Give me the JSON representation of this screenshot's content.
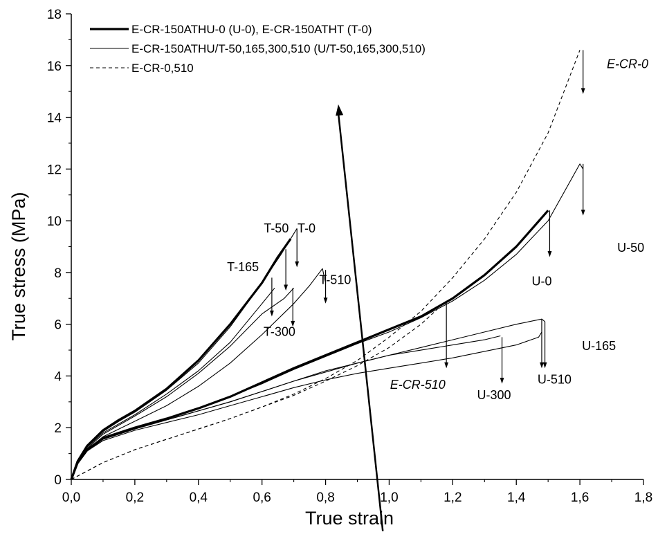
{
  "chart_data": {
    "type": "line",
    "xlabel": "True strain",
    "ylabel": "True stress (MPa)",
    "xlim": [
      0,
      1.8
    ],
    "ylim": [
      0,
      18
    ],
    "xticks": [
      "0,0",
      "0,2",
      "0,4",
      "0,6",
      "0,8",
      "1,0",
      "1,2",
      "1,4",
      "1,6",
      "1,8"
    ],
    "yticks": [
      "0",
      "2",
      "4",
      "6",
      "8",
      "10",
      "12",
      "14",
      "16",
      "18"
    ],
    "grid": false,
    "legend_position": "top-left",
    "legend": [
      {
        "label": "E-CR-150ATHU-0 (U-0), E-CR-150ATHT (T-0)",
        "style": "thick"
      },
      {
        "label": "E-CR-150ATHU/T-50,165,300,510 (U/T-50,165,300,510)",
        "style": "thin"
      },
      {
        "label": "E-CR-0,510",
        "style": "dashed"
      }
    ],
    "series": [
      {
        "label": "T-0",
        "style": "thick",
        "x": [
          0,
          0.02,
          0.05,
          0.1,
          0.15,
          0.2,
          0.3,
          0.4,
          0.5,
          0.6,
          0.65,
          0.69
        ],
        "y": [
          0,
          0.7,
          1.3,
          1.9,
          2.3,
          2.65,
          3.5,
          4.6,
          6.0,
          7.6,
          8.6,
          9.3
        ]
      },
      {
        "label": "T-50",
        "style": "thin",
        "x": [
          0,
          0.02,
          0.05,
          0.1,
          0.15,
          0.2,
          0.3,
          0.4,
          0.5,
          0.6,
          0.66,
          0.71
        ],
        "y": [
          0,
          0.7,
          1.3,
          1.85,
          2.25,
          2.6,
          3.45,
          4.5,
          5.9,
          7.6,
          8.7,
          9.7
        ]
      },
      {
        "label": "T-165",
        "style": "thin",
        "x": [
          0,
          0.02,
          0.05,
          0.1,
          0.15,
          0.2,
          0.3,
          0.4,
          0.5,
          0.6,
          0.64
        ],
        "y": [
          0,
          0.7,
          1.25,
          1.8,
          2.15,
          2.5,
          3.3,
          4.2,
          5.3,
          6.8,
          7.4
        ]
      },
      {
        "label": "T-300",
        "style": "thin",
        "x": [
          0,
          0.02,
          0.05,
          0.1,
          0.15,
          0.2,
          0.3,
          0.4,
          0.5,
          0.6,
          0.67,
          0.7
        ],
        "y": [
          0,
          0.7,
          1.2,
          1.75,
          2.1,
          2.45,
          3.2,
          4.1,
          5.15,
          6.4,
          7.0,
          7.4
        ]
      },
      {
        "label": "T-510",
        "style": "thin",
        "x": [
          0,
          0.02,
          0.05,
          0.1,
          0.15,
          0.2,
          0.3,
          0.4,
          0.5,
          0.6,
          0.7,
          0.75,
          0.79,
          0.8
        ],
        "y": [
          0,
          0.65,
          1.15,
          1.65,
          1.95,
          2.25,
          2.85,
          3.6,
          4.5,
          5.6,
          6.8,
          7.5,
          8.15,
          7.6
        ]
      },
      {
        "label": "U-0",
        "style": "thick",
        "x": [
          0,
          0.02,
          0.05,
          0.1,
          0.2,
          0.3,
          0.4,
          0.5,
          0.6,
          0.7,
          0.8,
          0.9,
          1.0,
          1.1,
          1.2,
          1.3,
          1.4,
          1.5
        ],
        "y": [
          0,
          0.65,
          1.15,
          1.6,
          2.0,
          2.35,
          2.75,
          3.2,
          3.75,
          4.3,
          4.8,
          5.3,
          5.8,
          6.3,
          7.0,
          7.9,
          9.0,
          10.4
        ]
      },
      {
        "label": "U-50",
        "style": "thin",
        "x": [
          0,
          0.02,
          0.05,
          0.1,
          0.2,
          0.3,
          0.4,
          0.5,
          0.6,
          0.7,
          0.8,
          0.9,
          1.0,
          1.1,
          1.2,
          1.3,
          1.4,
          1.5,
          1.6,
          1.61
        ],
        "y": [
          0,
          0.65,
          1.15,
          1.6,
          2.0,
          2.35,
          2.75,
          3.2,
          3.7,
          4.25,
          4.75,
          5.25,
          5.7,
          6.25,
          6.9,
          7.7,
          8.7,
          10.0,
          12.2,
          12.0
        ]
      },
      {
        "label": "U-165",
        "style": "thin",
        "x": [
          0,
          0.02,
          0.05,
          0.1,
          0.2,
          0.3,
          0.4,
          0.5,
          0.6,
          0.7,
          0.8,
          0.9,
          1.0,
          1.1,
          1.2,
          1.3,
          1.4,
          1.48,
          1.49
        ],
        "y": [
          0,
          0.6,
          1.1,
          1.55,
          1.95,
          2.3,
          2.65,
          3.0,
          3.4,
          3.8,
          4.15,
          4.5,
          4.8,
          5.1,
          5.4,
          5.7,
          6.0,
          6.2,
          6.1
        ]
      },
      {
        "label": "U-300",
        "style": "thin",
        "x": [
          0,
          0.02,
          0.05,
          0.1,
          0.2,
          0.3,
          0.4,
          0.5,
          0.6,
          0.7,
          0.8,
          0.9,
          1.0,
          1.1,
          1.2,
          1.3,
          1.35
        ],
        "y": [
          0,
          0.6,
          1.1,
          1.55,
          1.95,
          2.3,
          2.65,
          3.0,
          3.4,
          3.8,
          4.2,
          4.5,
          4.8,
          5.0,
          5.2,
          5.4,
          5.55
        ]
      },
      {
        "label": "U-510",
        "style": "thin",
        "x": [
          0,
          0.02,
          0.05,
          0.1,
          0.2,
          0.3,
          0.4,
          0.5,
          0.6,
          0.7,
          0.8,
          0.9,
          1.0,
          1.1,
          1.2,
          1.3,
          1.4,
          1.47,
          1.48
        ],
        "y": [
          0,
          0.6,
          1.1,
          1.5,
          1.9,
          2.2,
          2.5,
          2.85,
          3.2,
          3.55,
          3.85,
          4.1,
          4.3,
          4.5,
          4.7,
          4.95,
          5.2,
          5.5,
          5.7
        ]
      },
      {
        "label": "E-CR-0",
        "style": "dashed",
        "x": [
          0,
          0.1,
          0.2,
          0.3,
          0.4,
          0.5,
          0.6,
          0.7,
          0.8,
          0.9,
          1.0,
          1.1,
          1.2,
          1.3,
          1.4,
          1.5,
          1.6
        ],
        "y": [
          0,
          0.65,
          1.15,
          1.55,
          1.95,
          2.35,
          2.8,
          3.3,
          3.9,
          4.6,
          5.5,
          6.5,
          7.8,
          9.3,
          11.1,
          13.4,
          16.6
        ]
      },
      {
        "label": "E-CR-510",
        "style": "dashed",
        "x": [
          0,
          0.1,
          0.2,
          0.3,
          0.4,
          0.5,
          0.6,
          0.7,
          0.8,
          0.9,
          1.0,
          1.1,
          1.18
        ],
        "y": [
          0,
          0.65,
          1.15,
          1.55,
          1.95,
          2.35,
          2.8,
          3.25,
          3.8,
          4.4,
          5.1,
          6.0,
          6.9
        ]
      }
    ],
    "annotations": [
      {
        "text": "T-50",
        "x": 0.645,
        "y": 9.55,
        "italic": false
      },
      {
        "text": "T-0",
        "x": 0.74,
        "y": 9.55,
        "italic": false
      },
      {
        "text": "T-165",
        "x": 0.54,
        "y": 8.05,
        "italic": false
      },
      {
        "text": "T-510",
        "x": 0.83,
        "y": 7.55,
        "italic": false
      },
      {
        "text": "T-300",
        "x": 0.655,
        "y": 5.55,
        "italic": false
      },
      {
        "text": "E-CR-0",
        "x": 1.75,
        "y": 15.9,
        "italic": true
      },
      {
        "text": "U-50",
        "x": 1.76,
        "y": 8.8,
        "italic": false
      },
      {
        "text": "U-0",
        "x": 1.48,
        "y": 7.5,
        "italic": false
      },
      {
        "text": "U-165",
        "x": 1.66,
        "y": 5.0,
        "italic": false
      },
      {
        "text": "E-CR-510",
        "x": 1.09,
        "y": 3.5,
        "italic": true
      },
      {
        "text": "U-510",
        "x": 1.52,
        "y": 3.7,
        "italic": false
      },
      {
        "text": "U-300",
        "x": 1.33,
        "y": 3.1,
        "italic": false
      }
    ],
    "failure_arrows": [
      {
        "x": 0.71,
        "y_top": 9.7,
        "y_tip": 8.2
      },
      {
        "x": 0.675,
        "y_top": 8.9,
        "y_tip": 7.3
      },
      {
        "x": 0.631,
        "y_top": 7.8,
        "y_tip": 6.3
      },
      {
        "x": 0.697,
        "y_top": 7.4,
        "y_tip": 5.9
      },
      {
        "x": 0.8,
        "y_top": 8.1,
        "y_tip": 6.8
      },
      {
        "x": 1.61,
        "y_top": 16.6,
        "y_tip": 14.9
      },
      {
        "x": 1.61,
        "y_top": 12.2,
        "y_tip": 10.2
      },
      {
        "x": 1.505,
        "y_top": 10.4,
        "y_tip": 8.6
      },
      {
        "x": 1.48,
        "y_top": 6.2,
        "y_tip": 4.3
      },
      {
        "x": 1.49,
        "y_top": 6.1,
        "y_tip": 4.3
      },
      {
        "x": 1.18,
        "y_top": 6.9,
        "y_tip": 4.3
      },
      {
        "x": 1.355,
        "y_top": 5.5,
        "y_tip": 3.7
      }
    ],
    "trend_arrow": {
      "from": [
        0.98,
        -2.0
      ],
      "to": [
        0.84,
        14.5
      ]
    }
  }
}
